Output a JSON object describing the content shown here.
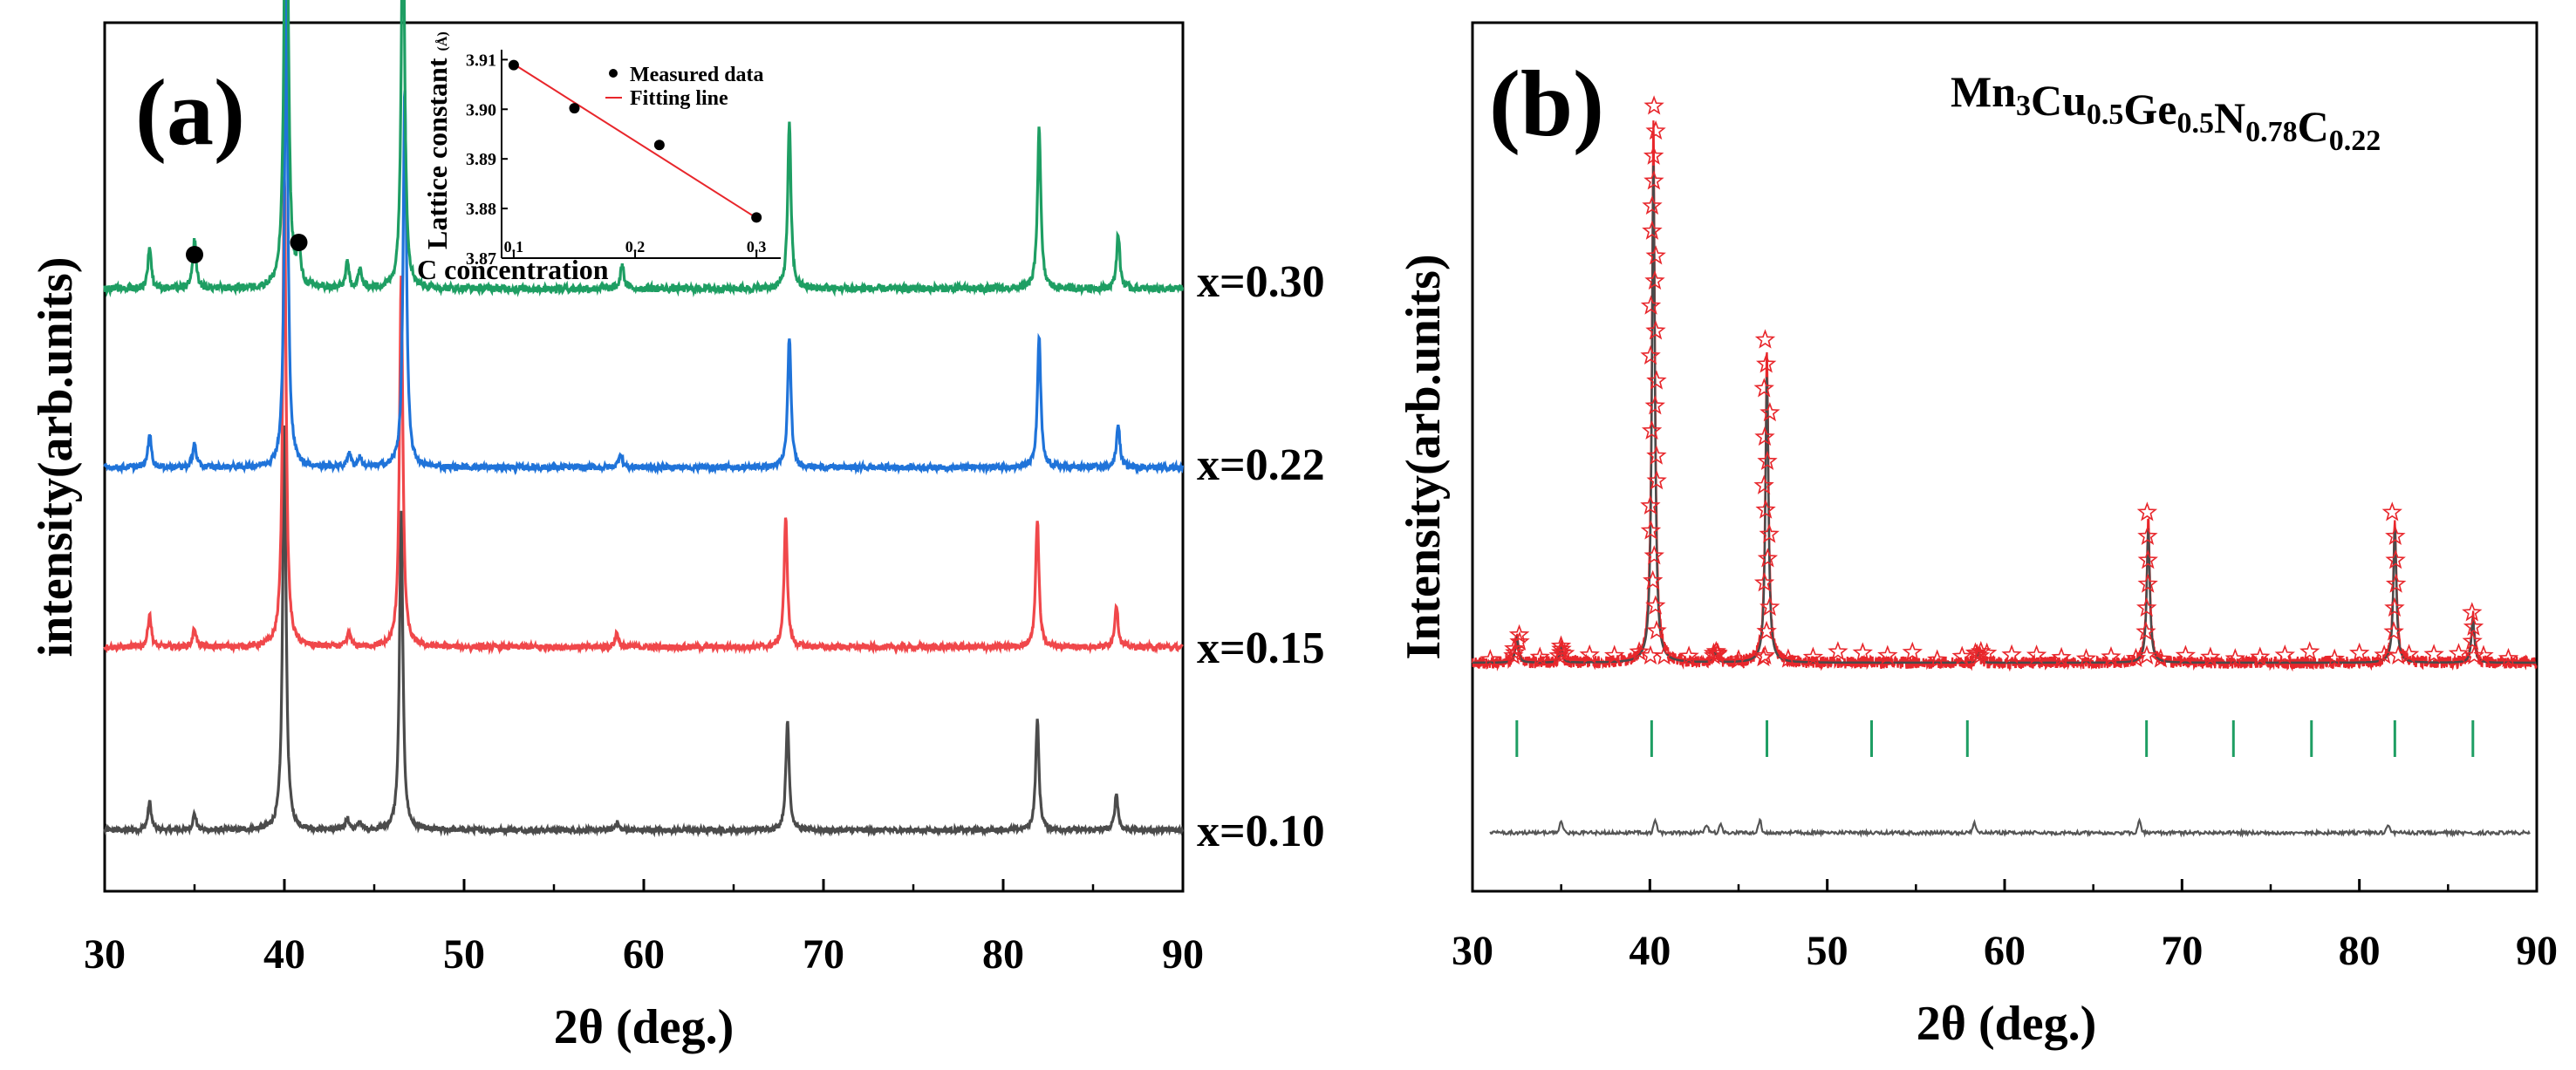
{
  "chart_data": [
    {
      "panel": "(a)",
      "type": "line",
      "xlabel": "2θ (deg.)",
      "ylabel": "intensity(arb.units)",
      "xlim": [
        30,
        90
      ],
      "xticks": [
        "30",
        "40",
        "50",
        "60",
        "70",
        "80",
        "90"
      ],
      "series": [
        {
          "name": "x=0.10",
          "color": "#4b4b4b",
          "peaks": [
            [
              32.5,
              0.07
            ],
            [
              35.0,
              0.04
            ],
            [
              40.0,
              1.0
            ],
            [
              43.5,
              0.03
            ],
            [
              44.2,
              0.02
            ],
            [
              46.5,
              0.78
            ],
            [
              58.5,
              0.02
            ],
            [
              68.0,
              0.27
            ],
            [
              81.9,
              0.27
            ],
            [
              86.3,
              0.09
            ]
          ]
        },
        {
          "name": "x=0.15",
          "color": "#f0474a",
          "peaks": [
            [
              32.5,
              0.07
            ],
            [
              35.0,
              0.04
            ],
            [
              40.0,
              1.0
            ],
            [
              43.6,
              0.03
            ],
            [
              46.5,
              0.78
            ],
            [
              58.5,
              0.03
            ],
            [
              67.9,
              0.27
            ],
            [
              81.9,
              0.27
            ],
            [
              86.3,
              0.09
            ]
          ]
        },
        {
          "name": "x=0.22",
          "color": "#1f73d9",
          "peaks": [
            [
              32.5,
              0.07
            ],
            [
              35.0,
              0.05
            ],
            [
              40.1,
              1.0
            ],
            [
              43.6,
              0.03
            ],
            [
              44.2,
              0.02
            ],
            [
              46.7,
              0.78
            ],
            [
              58.7,
              0.03
            ],
            [
              68.1,
              0.27
            ],
            [
              82.0,
              0.27
            ],
            [
              86.4,
              0.09
            ]
          ]
        },
        {
          "name": "x=0.30",
          "color": "#1e9e63",
          "peaks": [
            [
              32.5,
              0.07
            ],
            [
              35.0,
              0.08
            ],
            [
              40.1,
              1.0
            ],
            [
              40.8,
              0.06
            ],
            [
              43.5,
              0.04
            ],
            [
              44.2,
              0.03
            ],
            [
              46.6,
              0.68
            ],
            [
              58.8,
              0.04
            ],
            [
              68.1,
              0.27
            ],
            [
              82.0,
              0.27
            ],
            [
              86.4,
              0.09
            ]
          ]
        }
      ],
      "markers_2theta": [
        35.0,
        40.8
      ],
      "inset": {
        "type": "scatter",
        "xlabel": "C concentration",
        "ylabel": "Lattice constant",
        "ylabel_unit": "(Å)",
        "xticks": [
          "0.1",
          "0.2",
          "0.3"
        ],
        "yticks": [
          "3.87",
          "3.88",
          "3.89",
          "3.90",
          "3.91"
        ],
        "xlim": [
          0.09,
          0.32
        ],
        "ylim": [
          3.87,
          3.912
        ],
        "points": [
          [
            0.1,
            3.9089
          ],
          [
            0.15,
            3.9002
          ],
          [
            0.22,
            3.8928
          ],
          [
            0.3,
            3.8782
          ]
        ],
        "fit": [
          [
            0.1,
            3.9091
          ],
          [
            0.3,
            3.8781
          ]
        ],
        "legend": [
          "Measured data",
          "Fitting line"
        ]
      }
    },
    {
      "panel": "(b)",
      "type": "line",
      "xlabel": "2θ (deg.)",
      "ylabel": "Intensity(arb.units)",
      "xlim": [
        30,
        90
      ],
      "xticks": [
        "30",
        "40",
        "50",
        "60",
        "70",
        "80",
        "90"
      ],
      "formula": {
        "parts": [
          {
            "t": "Mn",
            "sub": "3"
          },
          {
            "t": "Cu",
            "sub": "0.5"
          },
          {
            "t": "Ge",
            "sub": "0.5"
          },
          {
            "t": "N",
            "sub": "0.78"
          },
          {
            "t": "C",
            "sub": "0.22"
          }
        ]
      },
      "observed_color": "#e8262b",
      "calculated_color": "#4a4a4a",
      "bragg_color": "#1e9e63",
      "difference_color": "#555555",
      "peaks": [
        [
          32.5,
          0.05
        ],
        [
          35.0,
          0.03
        ],
        [
          40.2,
          1.0
        ],
        [
          43.7,
          0.02
        ],
        [
          46.6,
          0.58
        ],
        [
          58.5,
          0.02
        ],
        [
          68.1,
          0.27
        ],
        [
          82.0,
          0.27
        ],
        [
          86.4,
          0.09
        ]
      ],
      "bragg_positions": [
        32.5,
        40.1,
        46.6,
        52.5,
        57.9,
        68.0,
        72.9,
        77.3,
        82.0,
        86.4
      ],
      "difference_features": [
        [
          35.0,
          0.8
        ],
        [
          40.3,
          1.0
        ],
        [
          43.2,
          0.6
        ],
        [
          44.0,
          0.6
        ],
        [
          46.2,
          0.9
        ],
        [
          58.3,
          0.7
        ],
        [
          67.6,
          0.9
        ],
        [
          81.6,
          0.6
        ]
      ]
    }
  ]
}
